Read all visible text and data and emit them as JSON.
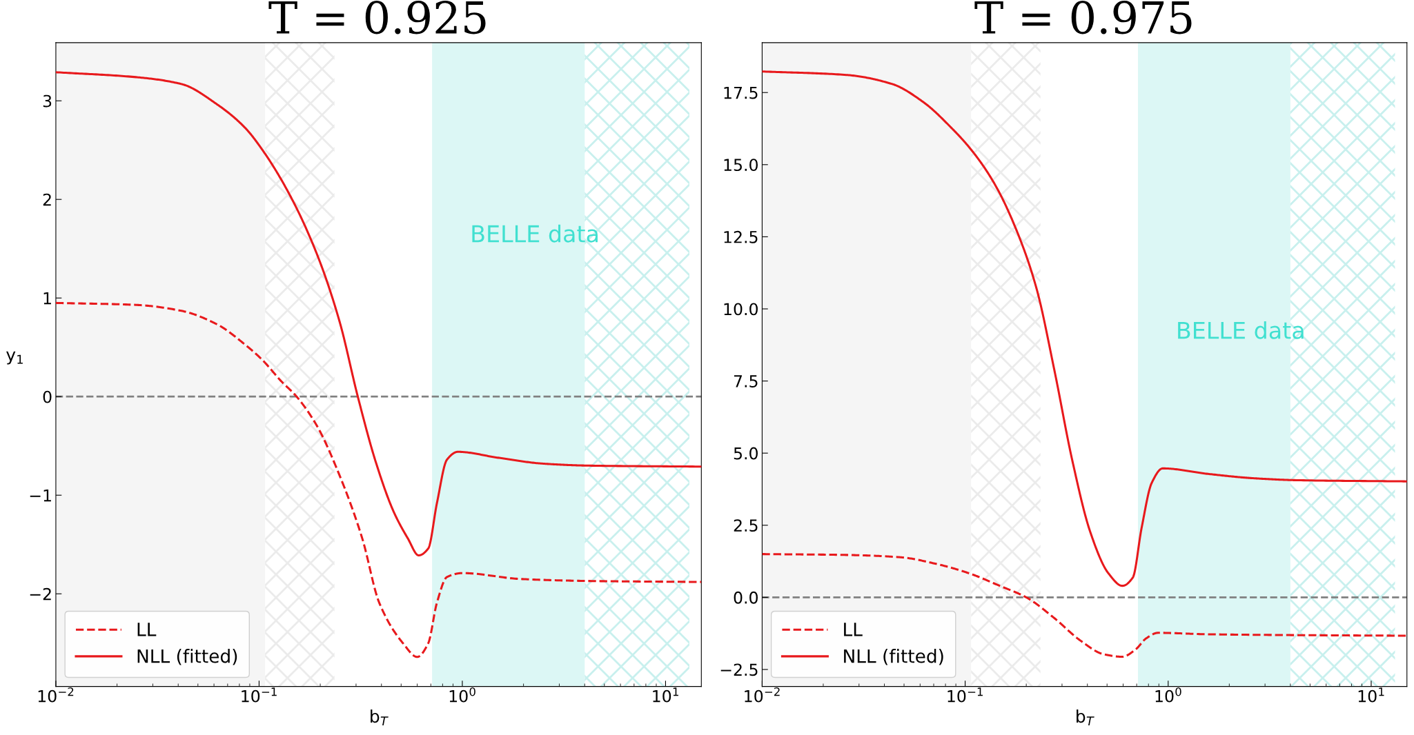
{
  "chart_data": [
    {
      "type": "line",
      "title": "T = 0.925",
      "xlabel": "b$_{T}$",
      "ylabel": "y$_{1}$",
      "log": "x",
      "xlim": [
        0.01,
        15
      ],
      "xticks": [
        {
          "value": 0.01,
          "label": "10$^{−2}$"
        },
        {
          "value": 0.1,
          "label": "10$^{−1}$"
        },
        {
          "value": 1,
          "label": "10$^{0}$"
        },
        {
          "value": 10,
          "label": "10$^{1}$"
        }
      ],
      "ylim": [
        -2.94,
        3.59
      ],
      "yticks": [
        {
          "value": -2,
          "label": "−2"
        },
        {
          "value": -1,
          "label": "−1"
        },
        0,
        1,
        2,
        3
      ],
      "legend": "bottom left",
      "line_style": "solid",
      "grid": false,
      "ref_lines": [
        {
          "axis": "y",
          "value": 0,
          "color": "#808080",
          "line_style": "dashed"
        }
      ],
      "bands": [
        {
          "axis": "x",
          "from": 0.01,
          "to": 0.107,
          "color": "#f5f5f5"
        },
        {
          "axis": "x",
          "from": 0.107,
          "to": 0.235,
          "color": "#ebebeb"
        },
        {
          "axis": "x",
          "from": 0.71,
          "to": 4.0,
          "color": "#dcf7f5",
          "label": "BELLE data"
        },
        {
          "axis": "x",
          "from": 4.0,
          "to": 13.1,
          "color": "#c8f0ee"
        }
      ],
      "series": [
        {
          "name": "LL",
          "color": "#e8191c",
          "line_style": "dashed",
          "x": [
            0.01,
            0.0248,
            0.0415,
            0.0625,
            0.085,
            0.104,
            0.128,
            0.153,
            0.193,
            0.249,
            0.322,
            0.39,
            0.51,
            0.6,
            0.68,
            0.75,
            0.84,
            1.0,
            1.94,
            4.2,
            15
          ],
          "values": [
            0.95,
            0.93,
            0.87,
            0.73,
            0.53,
            0.37,
            0.16,
            0,
            -0.3,
            -0.8,
            -1.44,
            -2.09,
            -2.5,
            -2.64,
            -2.5,
            -2.09,
            -1.83,
            -1.79,
            -1.85,
            -1.87,
            -1.88
          ]
        },
        {
          "name": "NLL (fitted)",
          "color": "#e8191c",
          "x": [
            0.01,
            0.0248,
            0.0415,
            0.0625,
            0.085,
            0.104,
            0.142,
            0.193,
            0.249,
            0.306,
            0.376,
            0.46,
            0.54,
            0.61,
            0.68,
            0.75,
            0.84,
            0.95,
            1.5,
            2.5,
            4.2,
            15
          ],
          "values": [
            3.29,
            3.24,
            3.17,
            2.96,
            2.73,
            2.5,
            2.04,
            1.44,
            0.76,
            0,
            -0.67,
            -1.17,
            -1.44,
            -1.61,
            -1.54,
            -1.08,
            -0.64,
            -0.56,
            -0.62,
            -0.68,
            -0.7,
            -0.71
          ]
        }
      ]
    },
    {
      "type": "line",
      "title": "T = 0.975",
      "xlabel": "b$_{T}$",
      "log": "x",
      "xlim": [
        0.01,
        15
      ],
      "xticks": [
        {
          "value": 0.01,
          "label": "10$^{−2}$"
        },
        {
          "value": 0.1,
          "label": "10$^{−1}$"
        },
        {
          "value": 1,
          "label": "10$^{0}$"
        },
        {
          "value": 10,
          "label": "10$^{1}$"
        }
      ],
      "ylim": [
        -3.09,
        19.23
      ],
      "yticks": [
        {
          "value": -2.5,
          "label": "−2.5"
        },
        {
          "value": 0,
          "label": "0.0"
        },
        2.5,
        {
          "value": 5,
          "label": "5.0"
        },
        7.5,
        {
          "value": 10,
          "label": "10.0"
        },
        12.5,
        {
          "value": 15,
          "label": "15.0"
        },
        17.5
      ],
      "legend": "bottom left",
      "line_style": "solid",
      "grid": false,
      "ref_lines": [
        {
          "axis": "y",
          "value": 0,
          "color": "#808080",
          "line_style": "dashed"
        }
      ],
      "bands": [
        {
          "axis": "x",
          "from": 0.01,
          "to": 0.107,
          "color": "#f5f5f5"
        },
        {
          "axis": "x",
          "from": 0.107,
          "to": 0.235,
          "color": "#ebebeb"
        },
        {
          "axis": "x",
          "from": 0.71,
          "to": 4.0,
          "color": "#dcf7f5",
          "label": "BELLE data"
        },
        {
          "axis": "x",
          "from": 4.0,
          "to": 13.1,
          "color": "#c8f0ee"
        }
      ],
      "series": [
        {
          "name": "LL",
          "color": "#e8191c",
          "line_style": "dashed",
          "x": [
            0.01,
            0.026,
            0.048,
            0.072,
            0.104,
            0.148,
            0.2,
            0.275,
            0.37,
            0.48,
            0.595,
            0.69,
            0.78,
            0.89,
            1.57,
            4.37,
            15
          ],
          "values": [
            1.5,
            1.47,
            1.39,
            1.16,
            0.84,
            0.4,
            0,
            -0.72,
            -1.5,
            -1.97,
            -2.06,
            -1.81,
            -1.42,
            -1.23,
            -1.28,
            -1.31,
            -1.33
          ]
        },
        {
          "name": "NLL (fitted)",
          "color": "#e8191c",
          "x": [
            0.01,
            0.026,
            0.0435,
            0.0622,
            0.0846,
            0.109,
            0.141,
            0.183,
            0.225,
            0.275,
            0.337,
            0.414,
            0.507,
            0.595,
            0.67,
            0.74,
            0.83,
            0.94,
            1.57,
            2.62,
            4.37,
            15
          ],
          "values": [
            18.23,
            18.11,
            17.8,
            17.17,
            16.31,
            15.45,
            14.28,
            12.56,
            10.69,
            7.88,
            4.75,
            2.25,
            0.84,
            0.4,
            0.69,
            2.41,
            3.97,
            4.47,
            4.28,
            4.13,
            4.06,
            4.02
          ]
        }
      ]
    }
  ]
}
